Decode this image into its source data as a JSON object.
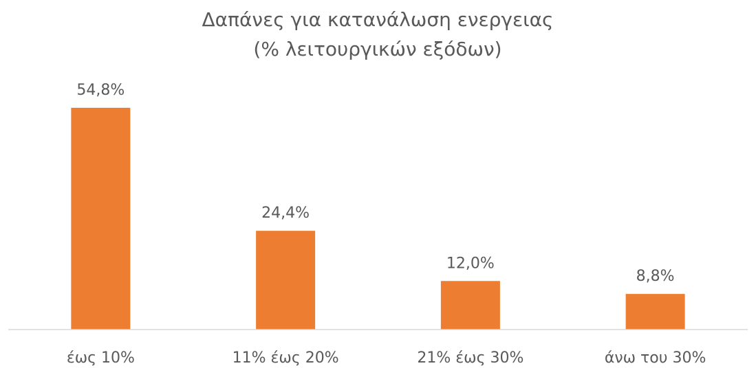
{
  "chart_data": {
    "type": "bar",
    "title": "Δαπάνες για κατανάλωση ενεργειας",
    "subtitle": "(% λειτουργικών εξόδων)",
    "categories": [
      "έως 10%",
      "11% έως 20%",
      "21% έως 30%",
      "άνω του 30%"
    ],
    "values": [
      54.8,
      24.4,
      12.0,
      8.8
    ],
    "value_labels": [
      "54,8%",
      "24,4%",
      "12,0%",
      "8,8%"
    ],
    "color": "#ed7d31"
  }
}
